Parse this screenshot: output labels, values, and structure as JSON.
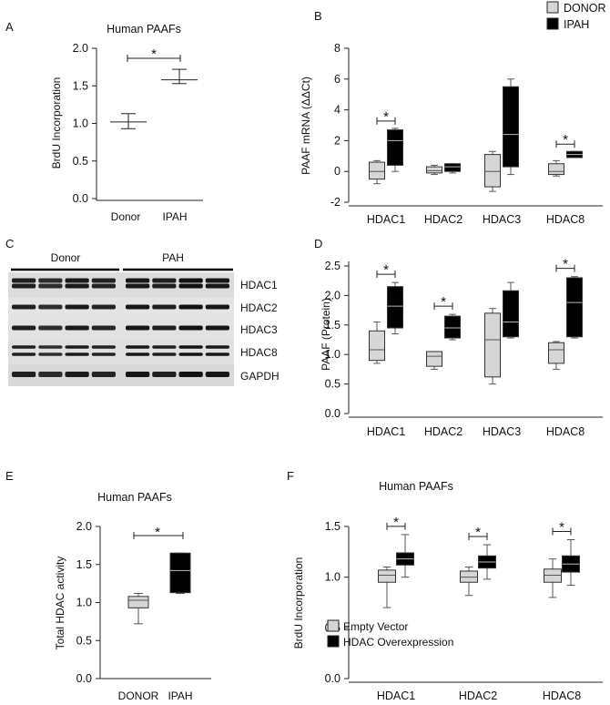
{
  "colors": {
    "light": "#d6d6d6",
    "dark": "#000000",
    "axis": "#222222"
  },
  "chart_data": [
    {
      "id": "A",
      "panel_label": "A",
      "type": "errorbar",
      "title": "Human PAAFs",
      "ylabel": "BrdU Incorporation",
      "xlabel": "",
      "ylim": [
        0,
        2
      ],
      "yticks": [
        "0.0",
        "0.5",
        "1.0",
        "1.5",
        "2.0"
      ],
      "categories": [
        "Donor",
        "IPAH"
      ],
      "points": [
        {
          "category": "Donor",
          "mean": 1.02,
          "low": 0.93,
          "high": 1.13
        },
        {
          "category": "IPAH",
          "mean": 1.58,
          "low": 1.53,
          "high": 1.72
        }
      ],
      "significance": [
        {
          "from": "Donor",
          "to": "IPAH",
          "label": "*"
        }
      ]
    },
    {
      "id": "B",
      "panel_label": "B",
      "type": "boxplot",
      "title": "",
      "ylabel": "PAAF mRNA (ΔΔCt)",
      "xlabel": "",
      "ylim": [
        -2,
        8
      ],
      "yticks": [
        "-2",
        "0",
        "2",
        "4",
        "6",
        "8"
      ],
      "categories": [
        "HDAC1",
        "HDAC2",
        "HDAC3",
        "HDAC8"
      ],
      "legend": {
        "position": "top-right",
        "entries": [
          "DONOR",
          "IPAH"
        ]
      },
      "series": [
        {
          "name": "DONOR",
          "color": "light",
          "boxes": [
            {
              "min": -0.8,
              "q1": -0.5,
              "median": 0.0,
              "q3": 0.6,
              "max": 0.7
            },
            {
              "min": -0.2,
              "q1": -0.1,
              "median": 0.05,
              "q3": 0.3,
              "max": 0.4
            },
            {
              "min": -1.3,
              "q1": -1.0,
              "median": 0.0,
              "q3": 1.1,
              "max": 1.3
            },
            {
              "min": -0.3,
              "q1": -0.2,
              "median": 0.0,
              "q3": 0.5,
              "max": 0.7
            }
          ]
        },
        {
          "name": "IPAH",
          "color": "dark",
          "boxes": [
            {
              "min": 0.0,
              "q1": 0.4,
              "median": 2.0,
              "q3": 2.7,
              "max": 2.8
            },
            {
              "min": -0.1,
              "q1": 0.0,
              "median": 0.3,
              "q3": 0.5,
              "max": 0.5
            },
            {
              "min": -0.2,
              "q1": 0.3,
              "median": 2.4,
              "q3": 5.5,
              "max": 6.0
            },
            {
              "min": 0.9,
              "q1": 0.9,
              "median": 1.1,
              "q3": 1.3,
              "max": 1.3
            }
          ]
        }
      ],
      "significance": [
        {
          "category": "HDAC1",
          "label": "*"
        },
        {
          "category": "HDAC8",
          "label": "*"
        }
      ]
    },
    {
      "id": "D",
      "panel_label": "D",
      "type": "boxplot",
      "title": "",
      "ylabel": "PAAF (Protein)",
      "xlabel": "",
      "ylim": [
        0,
        2.5
      ],
      "yticks": [
        "0.0",
        "0.5",
        "1.0",
        "1.5",
        "2.0",
        "2.5"
      ],
      "categories": [
        "HDAC1",
        "HDAC2",
        "HDAC3",
        "HDAC8"
      ],
      "series": [
        {
          "name": "DONOR",
          "color": "light",
          "boxes": [
            {
              "min": 0.85,
              "q1": 0.9,
              "median": 1.08,
              "q3": 1.4,
              "max": 1.55
            },
            {
              "min": 0.75,
              "q1": 0.8,
              "median": 0.97,
              "q3": 1.05,
              "max": 1.05
            },
            {
              "min": 0.5,
              "q1": 0.62,
              "median": 1.25,
              "q3": 1.7,
              "max": 1.78
            },
            {
              "min": 0.75,
              "q1": 0.85,
              "median": 1.08,
              "q3": 1.2,
              "max": 1.22
            }
          ]
        },
        {
          "name": "IPAH",
          "color": "dark",
          "boxes": [
            {
              "min": 1.35,
              "q1": 1.45,
              "median": 1.82,
              "q3": 2.15,
              "max": 2.22
            },
            {
              "min": 1.25,
              "q1": 1.28,
              "median": 1.45,
              "q3": 1.65,
              "max": 1.68
            },
            {
              "min": 1.28,
              "q1": 1.3,
              "median": 1.55,
              "q3": 2.08,
              "max": 2.22
            },
            {
              "min": 1.28,
              "q1": 1.3,
              "median": 1.88,
              "q3": 2.3,
              "max": 2.32
            }
          ]
        }
      ],
      "significance": [
        {
          "category": "HDAC1",
          "label": "*"
        },
        {
          "category": "HDAC2",
          "label": "*"
        },
        {
          "category": "HDAC8",
          "label": "*"
        }
      ]
    },
    {
      "id": "E",
      "panel_label": "E",
      "type": "boxplot",
      "title": "Human PAAFs",
      "ylabel": "Total HDAC activity",
      "xlabel": "",
      "ylim": [
        0,
        2
      ],
      "yticks": [
        "0.0",
        "0.5",
        "1.0",
        "1.5",
        "2.0"
      ],
      "categories": [
        "DONOR",
        "IPAH"
      ],
      "series": [
        {
          "name": "DONOR",
          "color": "light",
          "boxes": [
            {
              "min": 0.72,
              "q1": 0.93,
              "median": 1.03,
              "q3": 1.08,
              "max": 1.12
            }
          ]
        },
        {
          "name": "IPAH",
          "color": "dark",
          "boxes": [
            {
              "min": 1.12,
              "q1": 1.13,
              "median": 1.42,
              "q3": 1.65,
              "max": 1.65
            }
          ]
        }
      ],
      "significance": [
        {
          "from": "DONOR",
          "to": "IPAH",
          "label": "*"
        }
      ]
    },
    {
      "id": "F",
      "panel_label": "F",
      "type": "boxplot",
      "title": "Human PAAFs",
      "ylabel": "BrdU Incorporation",
      "xlabel": "",
      "ylim": [
        0,
        1.5
      ],
      "yticks": [
        "0.0",
        "0.5",
        "1.0",
        "1.5"
      ],
      "categories": [
        "HDAC1",
        "HDAC2",
        "HDAC8"
      ],
      "legend": {
        "position": "bottom-left",
        "entries": [
          "Empty Vector",
          "HDAC Overexpression"
        ]
      },
      "series": [
        {
          "name": "Empty Vector",
          "color": "light",
          "boxes": [
            {
              "min": 0.7,
              "q1": 0.95,
              "median": 1.02,
              "q3": 1.07,
              "max": 1.1
            },
            {
              "min": 0.82,
              "q1": 0.95,
              "median": 1.0,
              "q3": 1.06,
              "max": 1.1
            },
            {
              "min": 0.8,
              "q1": 0.95,
              "median": 1.02,
              "q3": 1.08,
              "max": 1.18
            }
          ]
        },
        {
          "name": "HDAC Overexpression",
          "color": "dark",
          "boxes": [
            {
              "min": 1.0,
              "q1": 1.12,
              "median": 1.18,
              "q3": 1.24,
              "max": 1.42
            },
            {
              "min": 0.98,
              "q1": 1.09,
              "median": 1.15,
              "q3": 1.21,
              "max": 1.32
            },
            {
              "min": 0.92,
              "q1": 1.05,
              "median": 1.13,
              "q3": 1.21,
              "max": 1.37
            }
          ]
        }
      ],
      "significance": [
        {
          "category": "HDAC1",
          "label": "*"
        },
        {
          "category": "HDAC2",
          "label": "*"
        },
        {
          "category": "HDAC8",
          "label": "*"
        }
      ]
    }
  ],
  "blot": {
    "panel_label": "C",
    "groups": [
      "Donor",
      "PAH"
    ],
    "rows": [
      "HDAC1",
      "HDAC2",
      "HDAC3",
      "HDAC8",
      "GAPDH"
    ],
    "lanes_per_group": 4
  }
}
